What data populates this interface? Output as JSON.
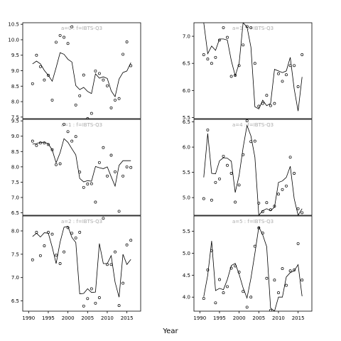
{
  "chart_data": {
    "type": "scatter",
    "xlabel": "Year",
    "x_ticks": [
      1990,
      1995,
      2000,
      2005,
      2010,
      2015
    ],
    "xlim": [
      1988.5,
      2018.5
    ],
    "panels": [
      {
        "label": "a=0  :  f=IBTS-Q3",
        "ylim": [
          7.45,
          10.55
        ],
        "y_ticks": [
          7.5,
          8.0,
          8.5,
          9.0,
          9.5,
          10.0,
          10.5
        ],
        "y_tick_labels": [
          "7.5",
          "8.0",
          "8.5",
          "9.0",
          "9.5",
          "10.0",
          "10.5"
        ],
        "fit": {
          "x": [
            1991,
            1992,
            1993,
            1994,
            1995,
            1996,
            1997,
            1998,
            1999,
            2000,
            2001,
            2002,
            2003,
            2004,
            2005,
            2006,
            2007,
            2008,
            2009,
            2010,
            2011,
            2012,
            2013,
            2014,
            2015,
            2016
          ],
          "y": [
            9.22,
            9.31,
            9.22,
            9.01,
            8.85,
            8.66,
            9.1,
            9.58,
            9.53,
            9.37,
            9.28,
            8.52,
            8.39,
            8.46,
            8.33,
            8.26,
            8.9,
            8.76,
            8.8,
            8.75,
            8.35,
            8.16,
            8.73,
            8.94,
            8.99,
            9.26
          ]
        },
        "points": {
          "x": [
            1991,
            1992,
            1993,
            1994,
            1995,
            1996,
            1997,
            1998,
            1999,
            2000,
            2001,
            2002,
            2003,
            2004,
            2005,
            2006,
            2007,
            2008,
            2009,
            2010,
            2011,
            2012,
            2013,
            2014,
            2015,
            2016
          ],
          "y": [
            8.58,
            9.5,
            9.13,
            8.7,
            8.85,
            8.05,
            9.92,
            10.14,
            10.08,
            9.88,
            10.42,
            7.89,
            8.19,
            8.86,
            7.45,
            7.62,
            8.99,
            8.91,
            8.7,
            8.51,
            7.8,
            8.05,
            8.1,
            9.53,
            9.93,
            9.16
          ]
        }
      },
      {
        "label": "a=1  :  f=IBTS-Q3",
        "ylim": [
          5.48,
          7.25
        ],
        "y_ticks": [
          5.5,
          6.0,
          6.5,
          7.0
        ],
        "y_tick_labels": [
          "5.5",
          "6.0",
          "6.5",
          "7.0"
        ],
        "fit": {
          "x": [
            1991,
            1992,
            1993,
            1994,
            1995,
            1996,
            1997,
            1998,
            1999,
            2000,
            2001,
            2002,
            2003,
            2004,
            2005,
            2006,
            2007,
            2008,
            2009,
            2010,
            2011,
            2012,
            2013,
            2014,
            2015,
            2016
          ],
          "y": [
            7.25,
            6.68,
            6.82,
            6.74,
            6.95,
            6.95,
            6.93,
            6.55,
            6.27,
            6.5,
            7.25,
            7.17,
            6.8,
            5.7,
            5.66,
            5.82,
            5.72,
            5.76,
            6.39,
            6.36,
            6.33,
            6.36,
            6.61,
            6.03,
            5.62,
            6.25
          ]
        },
        "points": {
          "x": [
            1991,
            1992,
            1993,
            1994,
            1995,
            1996,
            1997,
            1998,
            1999,
            2000,
            2001,
            2002,
            2003,
            2004,
            2005,
            2006,
            2007,
            2008,
            2009,
            2010,
            2011,
            2012,
            2013,
            2014,
            2015,
            2016
          ],
          "y": [
            6.66,
            6.58,
            6.5,
            6.61,
            6.93,
            7.16,
            6.98,
            6.26,
            6.28,
            6.46,
            6.84,
            7.18,
            7.16,
            6.5,
            5.71,
            5.76,
            5.91,
            5.72,
            5.76,
            6.31,
            6.17,
            6.29,
            6.46,
            6.46,
            6.07,
            6.66
          ]
        }
      },
      {
        "label": "a=1  :  f=IBTS-Q3",
        "ylim": [
          6.42,
          9.55
        ],
        "y_ticks": [
          6.5,
          7.0,
          7.5,
          8.0,
          8.5,
          9.0,
          9.5
        ],
        "y_tick_labels": [
          "6.5",
          "7.0",
          "7.5",
          "8.0",
          "8.5",
          "9.0",
          "9.5"
        ],
        "fit": {
          "x": [
            1991,
            1992,
            1993,
            1994,
            1995,
            1996,
            1997,
            1998,
            1999,
            2000,
            2001,
            2002,
            2003,
            2004,
            2005,
            2006,
            2007,
            2008,
            2009,
            2010,
            2011,
            2012,
            2013,
            2014,
            2015,
            2016
          ],
          "y": [
            8.74,
            8.76,
            8.8,
            8.8,
            8.75,
            8.55,
            8.13,
            8.46,
            8.92,
            8.8,
            8.59,
            8.39,
            7.62,
            7.51,
            7.55,
            7.53,
            8.01,
            7.97,
            7.94,
            8.0,
            7.68,
            7.37,
            8.05,
            8.2,
            8.2,
            8.2
          ]
        },
        "points": {
          "x": [
            1991,
            1992,
            1993,
            1994,
            1995,
            1996,
            1997,
            1998,
            1999,
            2000,
            2001,
            2002,
            2003,
            2004,
            2005,
            2006,
            2007,
            2008,
            2009,
            2010,
            2011,
            2012,
            2013,
            2014,
            2015,
            2016
          ],
          "y": [
            8.84,
            8.7,
            8.78,
            8.78,
            8.73,
            8.56,
            8.07,
            8.1,
            9.39,
            9.15,
            8.84,
            8.99,
            7.83,
            7.33,
            7.44,
            7.45,
            6.85,
            8.14,
            8.63,
            7.7,
            8.38,
            7.84,
            6.55,
            7.7,
            8.0,
            7.98
          ]
        }
      },
      {
        "label": "a=4  :  f=IBTS-Q3",
        "ylim": [
          4.65,
          6.55
        ],
        "y_ticks": [
          5.0,
          5.5,
          6.0,
          6.5
        ],
        "y_tick_labels": [
          "5.0",
          "5.5",
          "6.0",
          "6.5"
        ],
        "fit": {
          "x": [
            1991,
            1992,
            1993,
            1994,
            1995,
            1996,
            1997,
            1998,
            1999,
            2000,
            2001,
            2002,
            2003,
            2004,
            2005,
            2006,
            2007,
            2008,
            2009,
            2010,
            2011,
            2012,
            2013,
            2014,
            2015,
            2016
          ],
          "y": [
            5.4,
            6.27,
            5.48,
            5.47,
            5.73,
            5.79,
            5.78,
            5.72,
            5.1,
            5.44,
            5.99,
            6.43,
            6.22,
            5.8,
            4.65,
            4.74,
            4.78,
            4.74,
            4.81,
            5.3,
            5.33,
            5.4,
            5.62,
            4.98,
            4.65,
            4.78
          ]
        },
        "points": {
          "x": [
            1991,
            1992,
            1993,
            1994,
            1995,
            1996,
            1997,
            1998,
            1999,
            2000,
            2001,
            2002,
            2003,
            2004,
            2005,
            2006,
            2007,
            2008,
            2009,
            2010,
            2011,
            2012,
            2013,
            2014,
            2015,
            2016
          ],
          "y": [
            4.98,
            6.34,
            4.95,
            5.3,
            5.37,
            5.82,
            5.64,
            5.48,
            4.91,
            5.25,
            5.85,
            6.52,
            6.11,
            6.12,
            4.89,
            4.72,
            4.9,
            4.76,
            4.83,
            5.07,
            5.16,
            5.23,
            5.8,
            5.48,
            4.78,
            4.7
          ]
        }
      },
      {
        "label": "a=2  :  f=IBTS-Q3",
        "ylim": [
          6.28,
          8.32
        ],
        "y_ticks": [
          6.5,
          7.0,
          7.5,
          8.0
        ],
        "y_tick_labels": [
          "6.5",
          "7.0",
          "7.5",
          "8.0"
        ],
        "fit": {
          "x": [
            1991,
            1992,
            1993,
            1994,
            1995,
            1996,
            1997,
            1998,
            1999,
            2000,
            2001,
            2002,
            2003,
            2004,
            2005,
            2006,
            2007,
            2008,
            2009,
            2010,
            2011,
            2012,
            2013,
            2014,
            2015,
            2016
          ],
          "y": [
            7.88,
            7.95,
            7.87,
            7.96,
            7.95,
            7.65,
            7.3,
            7.76,
            8.08,
            8.1,
            7.86,
            7.75,
            6.65,
            6.66,
            6.76,
            6.68,
            6.69,
            7.73,
            7.3,
            7.3,
            7.47,
            6.9,
            6.58,
            7.5,
            7.28,
            7.39
          ]
        },
        "points": {
          "x": [
            1991,
            1992,
            1993,
            1994,
            1995,
            1996,
            1997,
            1998,
            1999,
            2000,
            2001,
            2002,
            2003,
            2004,
            2005,
            2006,
            2007,
            2008,
            2009,
            2010,
            2011,
            2012,
            2013,
            2014,
            2015,
            2016
          ],
          "y": [
            7.38,
            7.97,
            7.47,
            7.68,
            7.97,
            7.93,
            7.48,
            7.3,
            7.55,
            8.07,
            7.95,
            7.85,
            7.97,
            6.39,
            6.55,
            6.76,
            6.45,
            6.57,
            8.27,
            7.28,
            7.28,
            7.55,
            6.4,
            6.88,
            7.7,
            7.8
          ]
        }
      },
      {
        "label": "a=5  :  f=IBTS-Q3",
        "ylim": [
          3.68,
          5.85
        ],
        "y_ticks": [
          4.0,
          4.5,
          5.0,
          5.5
        ],
        "y_tick_labels": [
          "4.0",
          "4.5",
          "5.0",
          "5.5"
        ],
        "fit": {
          "x": [
            1991,
            1992,
            1993,
            1994,
            1995,
            1996,
            1997,
            1998,
            1999,
            2000,
            2001,
            2002,
            2003,
            2004,
            2005,
            2006,
            2007,
            2008,
            2009,
            2010,
            2011,
            2012,
            2013,
            2014,
            2015,
            2016
          ],
          "y": [
            4.01,
            4.5,
            5.28,
            4.15,
            4.2,
            4.17,
            4.4,
            4.72,
            4.77,
            4.52,
            4.21,
            3.98,
            4.43,
            5.0,
            5.6,
            5.42,
            5.15,
            3.75,
            3.68,
            4.0,
            4.0,
            4.46,
            4.56,
            4.6,
            4.74,
            4.02
          ]
        },
        "points": {
          "x": [
            1991,
            1992,
            1993,
            1994,
            1995,
            1996,
            1997,
            1998,
            1999,
            2000,
            2001,
            2002,
            2003,
            2004,
            2005,
            2006,
            2007,
            2008,
            2009,
            2010,
            2011,
            2012,
            2013,
            2014,
            2015,
            2016
          ],
          "y": [
            3.97,
            4.62,
            5.06,
            3.87,
            4.4,
            4.1,
            4.24,
            4.66,
            4.71,
            4.57,
            4.13,
            3.77,
            4.0,
            5.16,
            5.58,
            5.46,
            4.43,
            3.7,
            4.39,
            4.1,
            4.65,
            4.27,
            4.6,
            4.62,
            5.22,
            4.39
          ]
        }
      }
    ]
  }
}
